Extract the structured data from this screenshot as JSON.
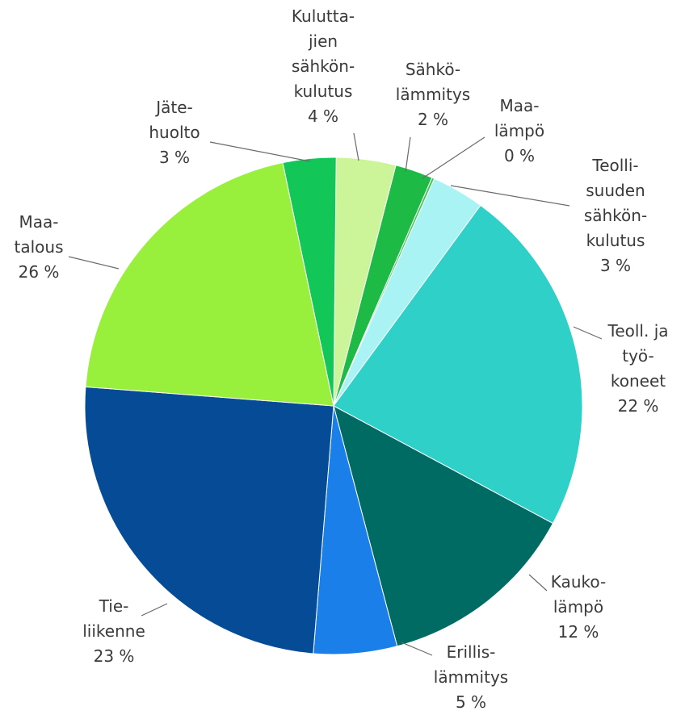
{
  "chart_data": {
    "type": "pie",
    "title": "",
    "slices": [
      {
        "name": "Kulutta-jien sähkön-kulutus",
        "lines": [
          "Kulutta-",
          "jien",
          "sähkön-",
          "kulutus",
          "4 %"
        ],
        "value": 4,
        "color": "#ccf59a"
      },
      {
        "name": "Sähkö-lämmitys",
        "lines": [
          "Sähkö-",
          "lämmitys",
          "2 %"
        ],
        "value": 2,
        "color": "#1dbb45"
      },
      {
        "name": "Maa-lämpö",
        "lines": [
          "Maa-",
          "lämpö",
          "0 %"
        ],
        "value": 0,
        "color": "#43c85a"
      },
      {
        "name": "Teolli-suuden sähkön-kulutus",
        "lines": [
          "Teolli-",
          "suuden",
          "sähkön-",
          "kulutus",
          "3 %"
        ],
        "value": 3,
        "color": "#a9f3f5"
      },
      {
        "name": "Teoll. ja työ-koneet",
        "lines": [
          "Teoll. ja",
          "työ-",
          "koneet",
          "22 %"
        ],
        "value": 22,
        "color": "#2fd0c8"
      },
      {
        "name": "Kauko-lämpö",
        "lines": [
          "Kauko-",
          "lämpö",
          "12 %"
        ],
        "value": 12,
        "color": "#006b63"
      },
      {
        "name": "Erillis-lämmitys",
        "lines": [
          "Erillis-",
          "lämmitys",
          "5 %"
        ],
        "value": 5,
        "color": "#1a7fe9"
      },
      {
        "name": "Tie-liikenne",
        "lines": [
          "Tie-",
          "liikenne",
          "23 %"
        ],
        "value": 23,
        "color": "#064b96"
      },
      {
        "name": "Maa-talous",
        "lines": [
          "Maa-",
          "talous",
          "26 %"
        ],
        "value": 26,
        "color": "#99f03c"
      },
      {
        "name": "Jäte-huolto",
        "lines": [
          "Jäte-",
          "huolto",
          "3 %"
        ],
        "value": 3,
        "color": "#12c758"
      }
    ]
  }
}
